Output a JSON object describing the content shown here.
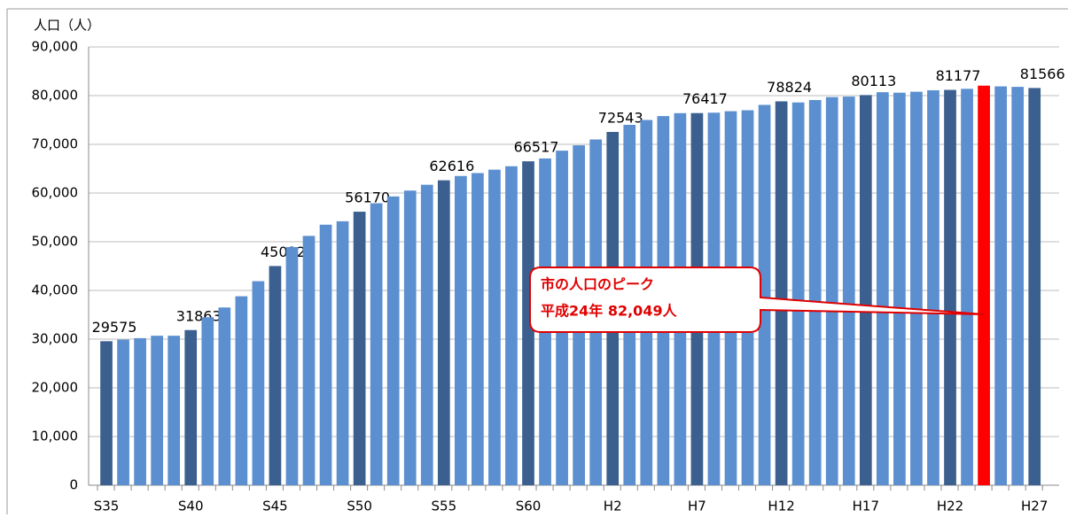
{
  "chart_data": {
    "type": "bar",
    "y_label": "人口（人）",
    "categories": [
      "S35",
      null,
      null,
      null,
      null,
      "S40",
      null,
      null,
      null,
      null,
      "S45",
      null,
      null,
      null,
      null,
      "S50",
      null,
      null,
      null,
      null,
      "S55",
      null,
      null,
      null,
      null,
      "S60",
      null,
      null,
      null,
      null,
      "H2",
      null,
      null,
      null,
      null,
      "H7",
      null,
      null,
      null,
      null,
      "H12",
      null,
      null,
      null,
      null,
      "H17",
      null,
      null,
      null,
      null,
      "H22",
      null,
      null,
      null,
      null,
      "H27"
    ],
    "values": [
      29575,
      29900,
      30200,
      30700,
      30700,
      31863,
      34500,
      36500,
      38800,
      41900,
      45012,
      48900,
      51200,
      53500,
      54200,
      56170,
      57900,
      59300,
      60500,
      61700,
      62616,
      63500,
      64100,
      64800,
      65500,
      66517,
      67100,
      68700,
      69800,
      71000,
      72543,
      74000,
      75000,
      75800,
      76400,
      76417,
      76500,
      76800,
      77000,
      78100,
      78824,
      78600,
      79100,
      79700,
      79800,
      80113,
      80700,
      80600,
      80800,
      81100,
      81177,
      81400,
      82049,
      81900,
      81800,
      81566
    ],
    "value_labels": [
      "29575",
      null,
      null,
      null,
      null,
      "31863",
      null,
      null,
      null,
      null,
      "45012",
      null,
      null,
      null,
      null,
      "56170",
      null,
      null,
      null,
      null,
      "62616",
      null,
      null,
      null,
      null,
      "66517",
      null,
      null,
      null,
      null,
      "72543",
      null,
      null,
      null,
      null,
      "76417",
      null,
      null,
      null,
      null,
      "78824",
      null,
      null,
      null,
      null,
      "80113",
      null,
      null,
      null,
      null,
      "81177",
      null,
      null,
      null,
      null,
      "81566"
    ],
    "colors": [
      "#3b6090",
      "#5b8fd0",
      "#5b8fd0",
      "#5b8fd0",
      "#5b8fd0",
      "#3b6090",
      "#5b8fd0",
      "#5b8fd0",
      "#5b8fd0",
      "#5b8fd0",
      "#3b6090",
      "#5b8fd0",
      "#5b8fd0",
      "#5b8fd0",
      "#5b8fd0",
      "#3b6090",
      "#5b8fd0",
      "#5b8fd0",
      "#5b8fd0",
      "#5b8fd0",
      "#3b6090",
      "#5b8fd0",
      "#5b8fd0",
      "#5b8fd0",
      "#5b8fd0",
      "#3b6090",
      "#5b8fd0",
      "#5b8fd0",
      "#5b8fd0",
      "#5b8fd0",
      "#3b6090",
      "#5b8fd0",
      "#5b8fd0",
      "#5b8fd0",
      "#5b8fd0",
      "#3b6090",
      "#5b8fd0",
      "#5b8fd0",
      "#5b8fd0",
      "#5b8fd0",
      "#3b6090",
      "#5b8fd0",
      "#5b8fd0",
      "#5b8fd0",
      "#5b8fd0",
      "#3b6090",
      "#5b8fd0",
      "#5b8fd0",
      "#5b8fd0",
      "#5b8fd0",
      "#3b6090",
      "#5b8fd0",
      "#ff0000",
      "#5b8fd0",
      "#5b8fd0",
      "#3b6090"
    ],
    "ylim": [
      0,
      90000
    ],
    "yticks": [
      0,
      {
        "value": 10000,
        "label": "10,000"
      },
      {
        "value": 20000,
        "label": "20,000"
      },
      {
        "value": 30000,
        "label": "30,000"
      },
      {
        "value": 40000,
        "label": "40,000"
      },
      {
        "value": 50000,
        "label": "50,000"
      },
      {
        "value": 60000,
        "label": "60,000"
      },
      {
        "value": 70000,
        "label": "70,000"
      },
      {
        "value": 80000,
        "label": "80,000"
      },
      {
        "value": 90000,
        "label": "90,000"
      }
    ],
    "grid": true,
    "annotation": {
      "lines": [
        "市の人口のピーク",
        "平成24年 82,049人"
      ],
      "target": 52
    }
  }
}
